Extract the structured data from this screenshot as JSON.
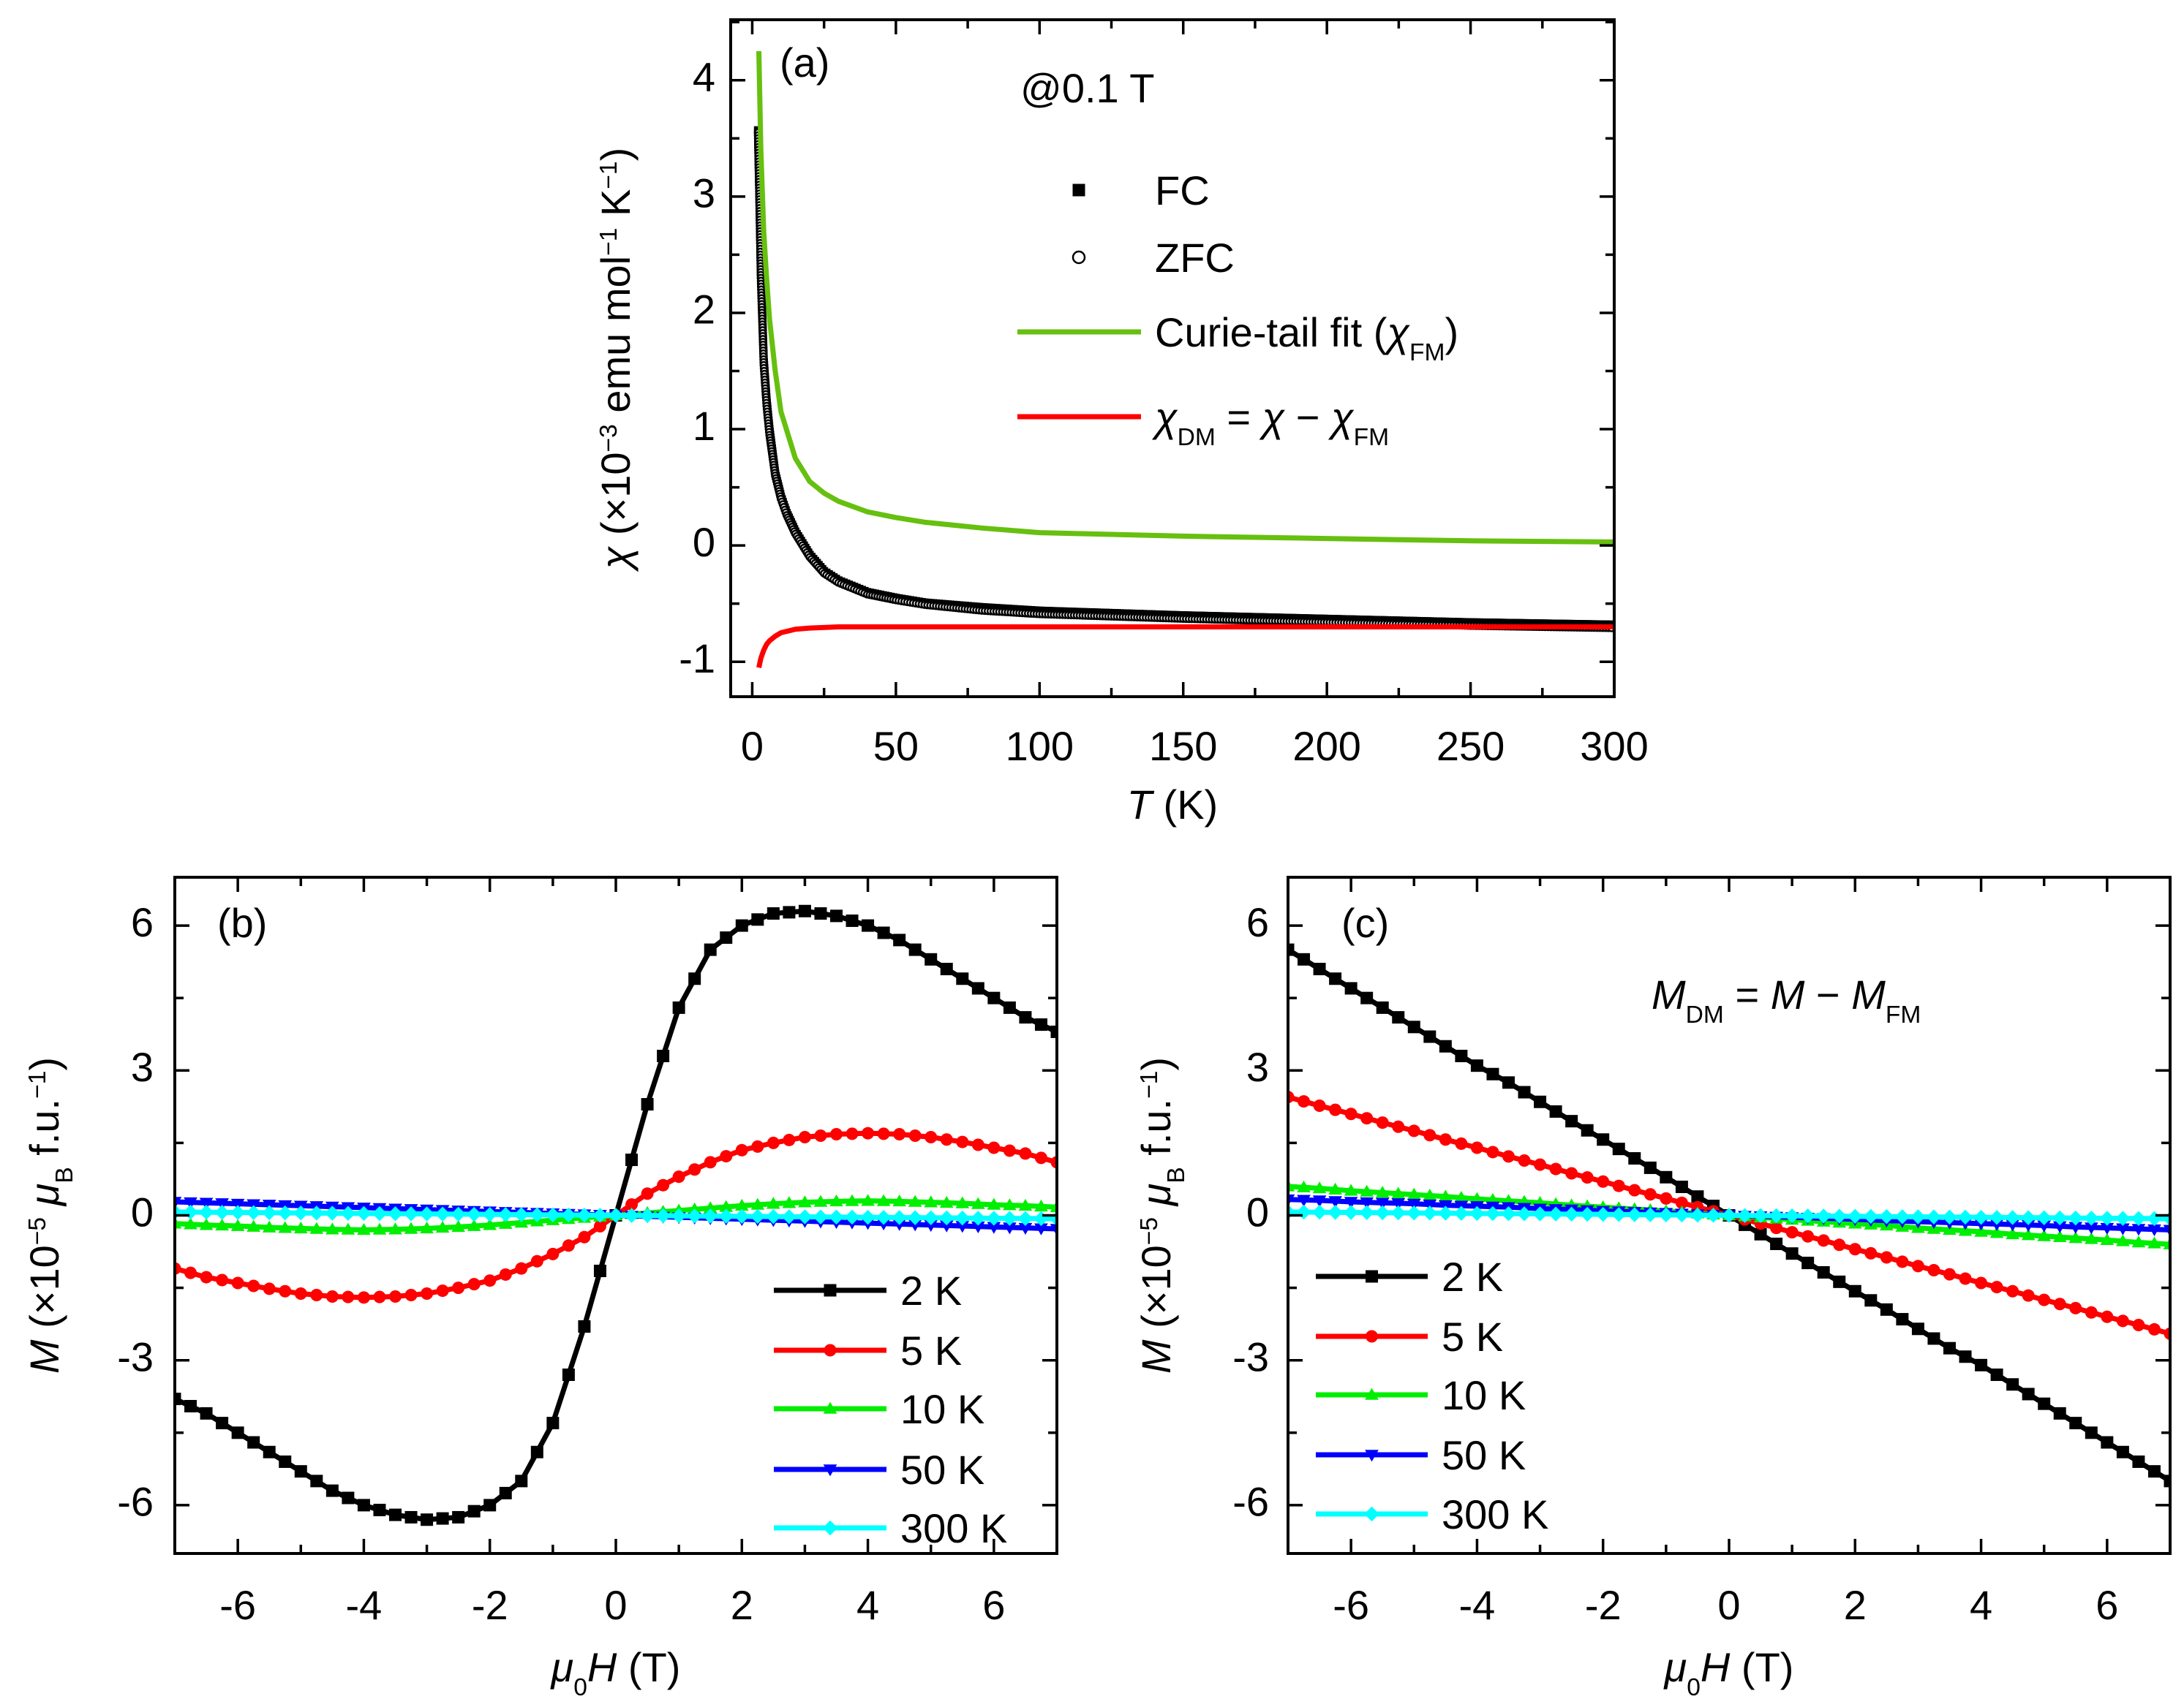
{
  "chart_data": [
    {
      "panel_label": "(a)",
      "type": "scatter+line",
      "annotation": "@0.1 T",
      "xlim": [
        -7.5,
        300
      ],
      "ylim": [
        -1.3,
        4.52
      ],
      "xticks": [
        0,
        50,
        100,
        150,
        200,
        250,
        300
      ],
      "xminor": 25,
      "yticks": [
        -1,
        0,
        1,
        2,
        3,
        4
      ],
      "yminor": 0.5,
      "xlabel": [
        {
          "t": "T",
          "i": true
        },
        {
          "t": " (K)"
        }
      ],
      "ylabel": [
        {
          "t": "χ",
          "i": true
        },
        {
          "t": " (×10"
        },
        {
          "t": "−3",
          "sup": true
        },
        {
          "t": " emu mol"
        },
        {
          "t": "−1",
          "sup": true
        },
        {
          "t": " K"
        },
        {
          "t": "−1",
          "sup": true
        },
        {
          "t": ")"
        }
      ],
      "series": [
        {
          "name": "FC",
          "legend": [
            {
              "t": "FC"
            }
          ],
          "color": "#000000",
          "marker": "square-filled",
          "line": false,
          "x": [
            2,
            2.5,
            3,
            4,
            5,
            6,
            8,
            10,
            12,
            15,
            20,
            25,
            30,
            40,
            50,
            60,
            80,
            100,
            150,
            200,
            250,
            300
          ],
          "y": [
            3.57,
            3.0,
            2.35,
            1.6,
            1.25,
            1.0,
            0.62,
            0.42,
            0.28,
            0.12,
            -0.08,
            -0.22,
            -0.3,
            -0.4,
            -0.45,
            -0.49,
            -0.53,
            -0.56,
            -0.6,
            -0.63,
            -0.66,
            -0.68
          ]
        },
        {
          "name": "ZFC",
          "legend": [
            {
              "t": "ZFC"
            }
          ],
          "color": "#000000",
          "marker": "circle-open",
          "line": false,
          "x": [
            2,
            2.5,
            3,
            4,
            5,
            6,
            8,
            10,
            12,
            15,
            20,
            25,
            30,
            40,
            50,
            60,
            80,
            100,
            150,
            200,
            250,
            300
          ],
          "y": [
            3.55,
            2.95,
            2.3,
            1.55,
            1.2,
            0.95,
            0.6,
            0.4,
            0.26,
            0.1,
            -0.1,
            -0.24,
            -0.32,
            -0.42,
            -0.47,
            -0.51,
            -0.56,
            -0.59,
            -0.63,
            -0.66,
            -0.69,
            -0.71
          ]
        },
        {
          "name": "Curie-tail fit (χFM)",
          "legend": [
            {
              "t": "Curie-tail fit ("
            },
            {
              "t": "χ",
              "i": true
            },
            {
              "t": "FM",
              "sub": true
            },
            {
              "t": ")"
            }
          ],
          "color": "#66c00f",
          "marker": "none",
          "line": true,
          "x": [
            2.3,
            3,
            4,
            5,
            6,
            8,
            10,
            15,
            20,
            25,
            30,
            40,
            50,
            60,
            80,
            100,
            150,
            200,
            250,
            300
          ],
          "y": [
            4.25,
            3.4,
            2.7,
            2.3,
            1.95,
            1.5,
            1.15,
            0.75,
            0.55,
            0.45,
            0.38,
            0.29,
            0.24,
            0.2,
            0.15,
            0.11,
            0.08,
            0.06,
            0.04,
            0.03
          ]
        },
        {
          "name": "χDM = χ − χFM",
          "legend": [
            {
              "t": "χ",
              "i": true
            },
            {
              "t": "DM",
              "sub": true
            },
            {
              "t": " = "
            },
            {
              "t": "χ",
              "i": true
            },
            {
              "t": " − "
            },
            {
              "t": "χ",
              "i": true
            },
            {
              "t": "FM",
              "sub": true
            }
          ],
          "color": "#ff0000",
          "marker": "none",
          "line": true,
          "x": [
            2.3,
            3,
            4,
            5,
            6,
            8,
            10,
            15,
            20,
            30,
            50,
            100,
            300
          ],
          "y": [
            -1.05,
            -0.97,
            -0.9,
            -0.85,
            -0.82,
            -0.78,
            -0.75,
            -0.72,
            -0.71,
            -0.7,
            -0.7,
            -0.7,
            -0.7
          ]
        }
      ]
    },
    {
      "panel_label": "(b)",
      "type": "line",
      "xlim": [
        -7,
        7
      ],
      "ylim": [
        -7,
        7
      ],
      "xticks": [
        -6,
        -4,
        -2,
        0,
        2,
        4,
        6
      ],
      "xminor": 1,
      "yticks": [
        -6,
        -3,
        0,
        3,
        6
      ],
      "yminor": 1.5,
      "xlabel": [
        {
          "t": "μ",
          "i": true
        },
        {
          "t": "0",
          "sub": true
        },
        {
          "t": "H",
          "i": true
        },
        {
          "t": " (T)"
        }
      ],
      "ylabel": [
        {
          "t": "M",
          "i": true
        },
        {
          "t": " (×10"
        },
        {
          "t": "−5",
          "sup": true
        },
        {
          "t": " "
        },
        {
          "t": "μ",
          "i": true
        },
        {
          "t": "B",
          "sub": true
        },
        {
          "t": " f.u."
        },
        {
          "t": "−1",
          "sup": true
        },
        {
          "t": ")"
        }
      ],
      "x": [
        -7,
        -6.5,
        -6,
        -5.5,
        -5,
        -4.5,
        -4,
        -3.5,
        -3,
        -2.5,
        -2,
        -1.5,
        -1,
        -0.5,
        0,
        0.5,
        1,
        1.5,
        2,
        2.5,
        3,
        3.5,
        4,
        4.5,
        5,
        5.5,
        6,
        6.5,
        7
      ],
      "series": [
        {
          "name": "2 K",
          "color": "#000000",
          "marker": "square",
          "y": [
            -3.8,
            -4.1,
            -4.5,
            -4.9,
            -5.3,
            -5.7,
            -6.0,
            -6.2,
            -6.3,
            -6.25,
            -6.0,
            -5.5,
            -4.3,
            -2.3,
            0,
            2.3,
            4.3,
            5.5,
            6.0,
            6.25,
            6.3,
            6.2,
            6.0,
            5.7,
            5.3,
            4.9,
            4.5,
            4.1,
            3.8
          ]
        },
        {
          "name": "5 K",
          "color": "#ff0000",
          "marker": "circle",
          "y": [
            -1.1,
            -1.28,
            -1.4,
            -1.52,
            -1.62,
            -1.68,
            -1.7,
            -1.68,
            -1.62,
            -1.5,
            -1.35,
            -1.1,
            -0.8,
            -0.45,
            0,
            0.45,
            0.8,
            1.1,
            1.35,
            1.5,
            1.62,
            1.68,
            1.7,
            1.68,
            1.62,
            1.52,
            1.4,
            1.28,
            1.1
          ]
        },
        {
          "name": "10 K",
          "color": "#00ee00",
          "marker": "triangle-up",
          "y": [
            -0.17,
            -0.2,
            -0.22,
            -0.25,
            -0.27,
            -0.29,
            -0.3,
            -0.29,
            -0.27,
            -0.24,
            -0.2,
            -0.15,
            -0.1,
            -0.05,
            0,
            0.05,
            0.1,
            0.15,
            0.2,
            0.24,
            0.27,
            0.29,
            0.3,
            0.29,
            0.27,
            0.25,
            0.22,
            0.2,
            0.17
          ]
        },
        {
          "name": "50 K",
          "color": "#0000ff",
          "marker": "triangle-down",
          "y": [
            0.28,
            0.26,
            0.24,
            0.22,
            0.2,
            0.18,
            0.16,
            0.14,
            0.12,
            0.1,
            0.08,
            0.06,
            0.04,
            0.02,
            0,
            -0.02,
            -0.04,
            -0.06,
            -0.08,
            -0.1,
            -0.12,
            -0.14,
            -0.16,
            -0.18,
            -0.2,
            -0.22,
            -0.24,
            -0.26,
            -0.28
          ]
        },
        {
          "name": "300 K",
          "color": "#00ffff",
          "marker": "diamond",
          "y": [
            0.07,
            0.065,
            0.06,
            0.055,
            0.05,
            0.045,
            0.04,
            0.035,
            0.03,
            0.025,
            0.02,
            0.015,
            0.01,
            0.005,
            0,
            -0.005,
            -0.01,
            -0.015,
            -0.02,
            -0.025,
            -0.03,
            -0.035,
            -0.04,
            -0.045,
            -0.05,
            -0.055,
            -0.06,
            -0.065,
            -0.07
          ]
        }
      ]
    },
    {
      "panel_label": "(c)",
      "type": "line",
      "annotation_parts": [
        {
          "t": "M",
          "i": true
        },
        {
          "t": "DM",
          "sub": true
        },
        {
          "t": " = "
        },
        {
          "t": "M",
          "i": true
        },
        {
          "t": " − "
        },
        {
          "t": "M",
          "i": true
        },
        {
          "t": "FM",
          "sub": true
        }
      ],
      "xlim": [
        -7,
        7
      ],
      "ylim": [
        -7,
        7
      ],
      "xticks": [
        -6,
        -4,
        -2,
        0,
        2,
        4,
        6
      ],
      "xminor": 1,
      "yticks": [
        -6,
        -3,
        0,
        3,
        6
      ],
      "yminor": 1.5,
      "xlabel": [
        {
          "t": "μ",
          "i": true
        },
        {
          "t": "0",
          "sub": true
        },
        {
          "t": "H",
          "i": true
        },
        {
          "t": " (T)"
        }
      ],
      "ylabel": [
        {
          "t": "M",
          "i": true
        },
        {
          "t": " (×10"
        },
        {
          "t": "−5",
          "sup": true
        },
        {
          "t": " "
        },
        {
          "t": "μ",
          "i": true
        },
        {
          "t": "B",
          "sub": true
        },
        {
          "t": " f.u."
        },
        {
          "t": "−1",
          "sup": true
        },
        {
          "t": ")"
        }
      ],
      "x": [
        -7,
        -6.5,
        -6,
        -5.5,
        -5,
        -4.5,
        -4,
        -3.5,
        -3,
        -2.5,
        -2,
        -1.5,
        -1,
        -0.5,
        0,
        0.5,
        1,
        1.5,
        2,
        2.5,
        3,
        3.5,
        4,
        4.5,
        5,
        5.5,
        6,
        6.5,
        7
      ],
      "series": [
        {
          "name": "2 K",
          "color": "#000000",
          "marker": "square",
          "y": [
            5.5,
            5.1,
            4.7,
            4.3,
            3.9,
            3.5,
            3.1,
            2.75,
            2.35,
            1.95,
            1.57,
            1.18,
            0.79,
            0.39,
            0,
            -0.39,
            -0.79,
            -1.18,
            -1.57,
            -1.95,
            -2.35,
            -2.75,
            -3.1,
            -3.5,
            -3.9,
            -4.3,
            -4.7,
            -5.1,
            -5.5
          ]
        },
        {
          "name": "5 K",
          "color": "#ff0000",
          "marker": "circle",
          "y": [
            2.45,
            2.27,
            2.1,
            1.92,
            1.75,
            1.57,
            1.4,
            1.22,
            1.05,
            0.87,
            0.7,
            0.52,
            0.35,
            0.17,
            0,
            -0.17,
            -0.35,
            -0.52,
            -0.7,
            -0.87,
            -1.05,
            -1.22,
            -1.4,
            -1.57,
            -1.75,
            -1.92,
            -2.1,
            -2.27,
            -2.45
          ]
        },
        {
          "name": "10 K",
          "color": "#00ee00",
          "marker": "triangle-up",
          "y": [
            0.6,
            0.56,
            0.51,
            0.47,
            0.43,
            0.39,
            0.34,
            0.3,
            0.26,
            0.21,
            0.17,
            0.13,
            0.09,
            0.04,
            0,
            -0.04,
            -0.09,
            -0.13,
            -0.17,
            -0.21,
            -0.26,
            -0.3,
            -0.34,
            -0.39,
            -0.43,
            -0.47,
            -0.51,
            -0.56,
            -0.6
          ]
        },
        {
          "name": "50 K",
          "color": "#0000ff",
          "marker": "triangle-down",
          "y": [
            0.33,
            0.31,
            0.28,
            0.26,
            0.24,
            0.21,
            0.19,
            0.17,
            0.14,
            0.12,
            0.09,
            0.07,
            0.05,
            0.02,
            0,
            -0.02,
            -0.04,
            -0.06,
            -0.08,
            -0.11,
            -0.13,
            -0.15,
            -0.17,
            -0.19,
            -0.21,
            -0.24,
            -0.26,
            -0.28,
            -0.3
          ]
        },
        {
          "name": "300 K",
          "color": "#00ffff",
          "marker": "diamond",
          "y": [
            0.07,
            0.065,
            0.06,
            0.055,
            0.05,
            0.045,
            0.04,
            0.035,
            0.03,
            0.025,
            0.02,
            0.015,
            0.01,
            0.005,
            0,
            -0.005,
            -0.01,
            -0.015,
            -0.02,
            -0.025,
            -0.03,
            -0.035,
            -0.04,
            -0.045,
            -0.05,
            -0.055,
            -0.06,
            -0.065,
            -0.07
          ]
        }
      ]
    }
  ]
}
